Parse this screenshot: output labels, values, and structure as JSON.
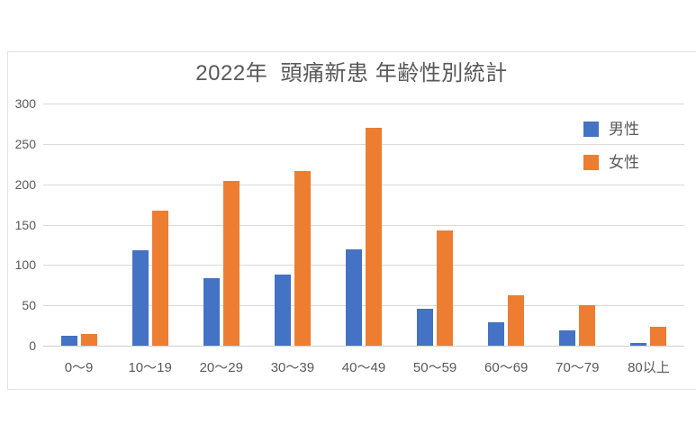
{
  "chart_data": {
    "type": "bar",
    "title": "2022年  頭痛新患 年齢性別統計",
    "categories": [
      "0〜9",
      "10〜19",
      "20〜29",
      "30〜39",
      "40〜49",
      "50〜59",
      "60〜69",
      "70〜79",
      "80以上"
    ],
    "series": [
      {
        "name": "男性",
        "color": "#4472C4",
        "values": [
          12,
          118,
          84,
          88,
          119,
          46,
          29,
          19,
          3
        ]
      },
      {
        "name": "女性",
        "color": "#ED7D31",
        "values": [
          15,
          167,
          204,
          216,
          270,
          143,
          62,
          50,
          23
        ]
      }
    ],
    "xlabel": "",
    "ylabel": "",
    "ylim": [
      0,
      300
    ],
    "yticks": [
      300,
      250,
      200,
      150,
      100,
      50,
      0
    ],
    "grid": true,
    "legend_position": "top-right-inside",
    "colors": {
      "grid": "#D9D9D9",
      "axis_text": "#595959",
      "title_text": "#595959",
      "frame_border": "#E2E2E2",
      "background": "#FFFFFF"
    }
  }
}
